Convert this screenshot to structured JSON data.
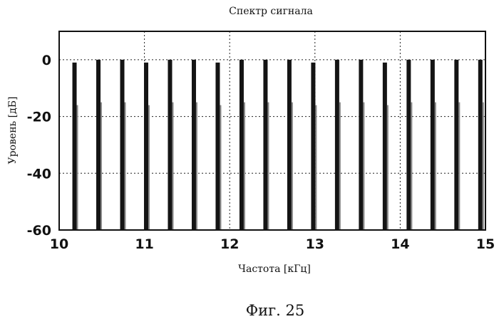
{
  "chart_data": {
    "type": "bar",
    "title": "Спектр сигнала",
    "xlabel": "Частота [кГц]",
    "ylabel": "Уровень [дБ]",
    "xlim": [
      10,
      15
    ],
    "ylim": [
      -60,
      10
    ],
    "xticks": [
      "10",
      "11",
      "12",
      "13",
      "14",
      "15"
    ],
    "yticks": [
      "0",
      "-20",
      "-40",
      "-60"
    ],
    "grid": true,
    "bars": [
      {
        "x": 10.18,
        "value": -1
      },
      {
        "x": 10.46,
        "value": 0
      },
      {
        "x": 10.74,
        "value": 0
      },
      {
        "x": 11.02,
        "value": -1
      },
      {
        "x": 11.3,
        "value": 0
      },
      {
        "x": 11.58,
        "value": 0
      },
      {
        "x": 11.86,
        "value": -1
      },
      {
        "x": 12.14,
        "value": 0
      },
      {
        "x": 12.42,
        "value": 0
      },
      {
        "x": 12.7,
        "value": 0
      },
      {
        "x": 12.98,
        "value": -1
      },
      {
        "x": 13.26,
        "value": 0
      },
      {
        "x": 13.54,
        "value": 0
      },
      {
        "x": 13.82,
        "value": -1
      },
      {
        "x": 14.1,
        "value": 0
      },
      {
        "x": 14.38,
        "value": 0
      },
      {
        "x": 14.66,
        "value": 0
      },
      {
        "x": 14.94,
        "value": 0
      }
    ]
  },
  "caption": "Фиг. 25"
}
